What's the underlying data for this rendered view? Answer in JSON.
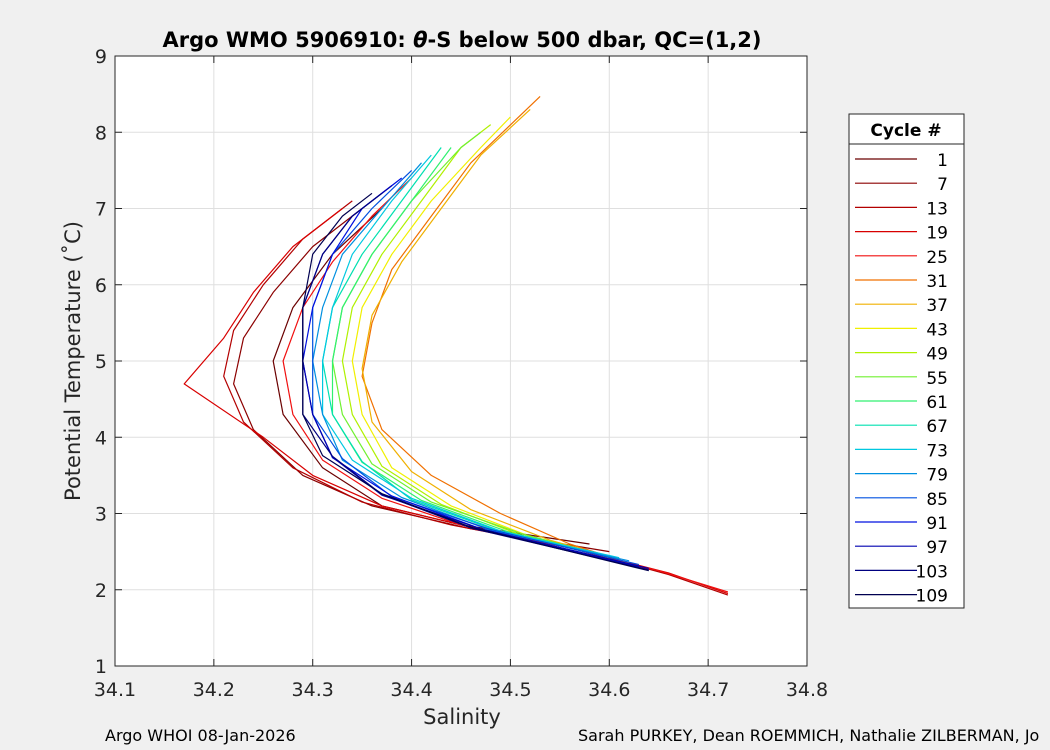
{
  "chart_data": {
    "type": "line",
    "title_prefix": "Argo WMO 5906910: ",
    "title_theta": "θ",
    "title_suffix": "-S below 500 dbar,  QC=(1,2)",
    "xlabel": "Salinity",
    "ylabel": "Potential Temperature (˚C)",
    "xlim": [
      34.1,
      34.8
    ],
    "ylim": [
      1,
      9
    ],
    "xticks": [
      "34.1",
      "34.2",
      "34.3",
      "34.4",
      "34.5",
      "34.6",
      "34.7",
      "34.8"
    ],
    "yticks": [
      "1",
      "2",
      "3",
      "4",
      "5",
      "6",
      "7",
      "8",
      "9"
    ],
    "grid": true,
    "legend": {
      "title": "Cycle #",
      "placement": "outside-right",
      "entries": [
        {
          "label": "1",
          "color": "#6b0000"
        },
        {
          "label": "7",
          "color": "#8c0000"
        },
        {
          "label": "13",
          "color": "#b30000"
        },
        {
          "label": "19",
          "color": "#d80000"
        },
        {
          "label": "25",
          "color": "#f01010"
        },
        {
          "label": "31",
          "color": "#f07000"
        },
        {
          "label": "37",
          "color": "#f0b000"
        },
        {
          "label": "43",
          "color": "#f0f000"
        },
        {
          "label": "49",
          "color": "#b0f000"
        },
        {
          "label": "55",
          "color": "#70f030"
        },
        {
          "label": "61",
          "color": "#30f070"
        },
        {
          "label": "67",
          "color": "#00e0b0"
        },
        {
          "label": "73",
          "color": "#00c8e0"
        },
        {
          "label": "79",
          "color": "#0090e0"
        },
        {
          "label": "85",
          "color": "#0050e0"
        },
        {
          "label": "91",
          "color": "#0010e0"
        },
        {
          "label": "97",
          "color": "#0000b0"
        },
        {
          "label": "103",
          "color": "#000080"
        },
        {
          "label": "109",
          "color": "#000050"
        }
      ]
    },
    "series": [
      {
        "name": "1",
        "color": "#6b0000",
        "points": [
          [
            34.58,
            2.6
          ],
          [
            34.45,
            2.85
          ],
          [
            34.37,
            3.1
          ],
          [
            34.31,
            3.6
          ],
          [
            34.27,
            4.3
          ],
          [
            34.26,
            5.0
          ],
          [
            34.28,
            5.7
          ],
          [
            34.32,
            6.4
          ],
          [
            34.37,
            7.0
          ]
        ]
      },
      {
        "name": "7",
        "color": "#8c0000",
        "points": [
          [
            34.6,
            2.5
          ],
          [
            34.46,
            2.8
          ],
          [
            34.36,
            3.1
          ],
          [
            34.29,
            3.5
          ],
          [
            34.24,
            4.1
          ],
          [
            34.22,
            4.7
          ],
          [
            34.23,
            5.3
          ],
          [
            34.26,
            5.9
          ],
          [
            34.3,
            6.5
          ],
          [
            34.35,
            7.0
          ]
        ]
      },
      {
        "name": "13",
        "color": "#b30000",
        "points": [
          [
            34.72,
            1.93
          ],
          [
            34.66,
            2.2
          ],
          [
            34.56,
            2.55
          ],
          [
            34.44,
            2.85
          ],
          [
            34.35,
            3.15
          ],
          [
            34.28,
            3.6
          ],
          [
            34.23,
            4.2
          ],
          [
            34.21,
            4.8
          ],
          [
            34.22,
            5.4
          ],
          [
            34.25,
            6.0
          ],
          [
            34.29,
            6.6
          ],
          [
            34.34,
            7.1
          ]
        ]
      },
      {
        "name": "19",
        "color": "#d80000",
        "points": [
          [
            34.72,
            1.95
          ],
          [
            34.66,
            2.22
          ],
          [
            34.57,
            2.52
          ],
          [
            34.46,
            2.82
          ],
          [
            34.37,
            3.1
          ],
          [
            34.3,
            3.5
          ],
          [
            34.25,
            4.0
          ],
          [
            34.17,
            4.7
          ],
          [
            34.21,
            5.3
          ],
          [
            34.24,
            5.9
          ],
          [
            34.28,
            6.5
          ],
          [
            34.33,
            7.0
          ]
        ]
      },
      {
        "name": "25",
        "color": "#f01010",
        "points": [
          [
            34.72,
            1.97
          ],
          [
            34.65,
            2.25
          ],
          [
            34.55,
            2.55
          ],
          [
            34.45,
            2.85
          ],
          [
            34.37,
            3.2
          ],
          [
            34.31,
            3.7
          ],
          [
            34.28,
            4.3
          ],
          [
            34.27,
            5.0
          ],
          [
            34.29,
            5.7
          ],
          [
            34.32,
            6.3
          ],
          [
            34.36,
            6.9
          ],
          [
            34.4,
            7.4
          ]
        ]
      },
      {
        "name": "31",
        "color": "#f07000",
        "points": [
          [
            34.62,
            2.35
          ],
          [
            34.56,
            2.6
          ],
          [
            34.49,
            3.0
          ],
          [
            34.42,
            3.5
          ],
          [
            34.37,
            4.1
          ],
          [
            34.35,
            4.8
          ],
          [
            34.36,
            5.5
          ],
          [
            34.38,
            6.2
          ],
          [
            34.42,
            6.9
          ],
          [
            34.46,
            7.6
          ],
          [
            34.53,
            8.47
          ]
        ]
      },
      {
        "name": "37",
        "color": "#f0b000",
        "points": [
          [
            34.61,
            2.4
          ],
          [
            34.54,
            2.65
          ],
          [
            34.46,
            3.05
          ],
          [
            34.4,
            3.55
          ],
          [
            34.36,
            4.2
          ],
          [
            34.35,
            4.9
          ],
          [
            34.36,
            5.6
          ],
          [
            34.39,
            6.3
          ],
          [
            34.43,
            7.0
          ],
          [
            34.47,
            7.7
          ],
          [
            34.52,
            8.3
          ]
        ]
      },
      {
        "name": "43",
        "color": "#f0f000",
        "points": [
          [
            34.6,
            2.42
          ],
          [
            34.52,
            2.7
          ],
          [
            34.44,
            3.1
          ],
          [
            34.38,
            3.6
          ],
          [
            34.35,
            4.3
          ],
          [
            34.34,
            5.0
          ],
          [
            34.35,
            5.7
          ],
          [
            34.38,
            6.4
          ],
          [
            34.42,
            7.1
          ],
          [
            34.47,
            7.8
          ],
          [
            34.5,
            8.2
          ]
        ]
      },
      {
        "name": "49",
        "color": "#b0f000",
        "points": [
          [
            34.6,
            2.42
          ],
          [
            34.51,
            2.72
          ],
          [
            34.43,
            3.12
          ],
          [
            34.37,
            3.62
          ],
          [
            34.34,
            4.3
          ],
          [
            34.33,
            5.0
          ],
          [
            34.34,
            5.7
          ],
          [
            34.37,
            6.4
          ],
          [
            34.41,
            7.1
          ],
          [
            34.45,
            7.8
          ],
          [
            34.48,
            8.1
          ]
        ]
      },
      {
        "name": "55",
        "color": "#70f030",
        "points": [
          [
            34.6,
            2.43
          ],
          [
            34.51,
            2.74
          ],
          [
            34.42,
            3.15
          ],
          [
            34.36,
            3.65
          ],
          [
            34.33,
            4.3
          ],
          [
            34.32,
            5.0
          ],
          [
            34.33,
            5.7
          ],
          [
            34.36,
            6.4
          ],
          [
            34.4,
            7.1
          ],
          [
            34.45,
            7.8
          ],
          [
            34.47,
            8.0
          ]
        ]
      },
      {
        "name": "61",
        "color": "#30f070",
        "points": [
          [
            34.6,
            2.44
          ],
          [
            34.5,
            2.75
          ],
          [
            34.41,
            3.17
          ],
          [
            34.35,
            3.67
          ],
          [
            34.32,
            4.3
          ],
          [
            34.32,
            5.0
          ],
          [
            34.33,
            5.7
          ],
          [
            34.36,
            6.4
          ],
          [
            34.4,
            7.1
          ],
          [
            34.44,
            7.8
          ]
        ]
      },
      {
        "name": "67",
        "color": "#00e0b0",
        "points": [
          [
            34.6,
            2.44
          ],
          [
            34.49,
            2.76
          ],
          [
            34.4,
            3.18
          ],
          [
            34.35,
            3.68
          ],
          [
            34.32,
            4.3
          ],
          [
            34.31,
            5.0
          ],
          [
            34.32,
            5.7
          ],
          [
            34.35,
            6.4
          ],
          [
            34.39,
            7.1
          ],
          [
            34.43,
            7.8
          ]
        ]
      },
      {
        "name": "73",
        "color": "#00c8e0",
        "points": [
          [
            34.61,
            2.42
          ],
          [
            34.49,
            2.77
          ],
          [
            34.4,
            3.2
          ],
          [
            34.34,
            3.7
          ],
          [
            34.31,
            4.3
          ],
          [
            34.31,
            5.0
          ],
          [
            34.32,
            5.7
          ],
          [
            34.34,
            6.4
          ],
          [
            34.38,
            7.1
          ],
          [
            34.42,
            7.7
          ]
        ]
      },
      {
        "name": "79",
        "color": "#0090e0",
        "points": [
          [
            34.62,
            2.38
          ],
          [
            34.48,
            2.78
          ],
          [
            34.39,
            3.21
          ],
          [
            34.33,
            3.7
          ],
          [
            34.31,
            4.3
          ],
          [
            34.3,
            5.0
          ],
          [
            34.31,
            5.7
          ],
          [
            34.33,
            6.4
          ],
          [
            34.37,
            7.0
          ],
          [
            34.41,
            7.6
          ]
        ]
      },
      {
        "name": "85",
        "color": "#0050e0",
        "points": [
          [
            34.63,
            2.33
          ],
          [
            34.48,
            2.79
          ],
          [
            34.38,
            3.22
          ],
          [
            34.33,
            3.72
          ],
          [
            34.3,
            4.3
          ],
          [
            34.3,
            5.0
          ],
          [
            34.3,
            5.7
          ],
          [
            34.32,
            6.4
          ],
          [
            34.36,
            7.0
          ],
          [
            34.4,
            7.5
          ]
        ]
      },
      {
        "name": "91",
        "color": "#0010e0",
        "points": [
          [
            34.63,
            2.3
          ],
          [
            34.47,
            2.8
          ],
          [
            34.38,
            3.23
          ],
          [
            34.32,
            3.73
          ],
          [
            34.3,
            4.3
          ],
          [
            34.29,
            5.0
          ],
          [
            34.3,
            5.7
          ],
          [
            34.32,
            6.4
          ],
          [
            34.35,
            7.0
          ],
          [
            34.39,
            7.4
          ]
        ]
      },
      {
        "name": "97",
        "color": "#0000b0",
        "points": [
          [
            34.64,
            2.28
          ],
          [
            34.47,
            2.8
          ],
          [
            34.37,
            3.24
          ],
          [
            34.32,
            3.74
          ],
          [
            34.3,
            4.3
          ],
          [
            34.29,
            5.0
          ],
          [
            34.29,
            5.7
          ],
          [
            34.31,
            6.4
          ],
          [
            34.34,
            6.9
          ],
          [
            34.38,
            7.3
          ]
        ]
      },
      {
        "name": "103",
        "color": "#000080",
        "points": [
          [
            34.64,
            2.26
          ],
          [
            34.46,
            2.81
          ],
          [
            34.37,
            3.25
          ],
          [
            34.32,
            3.75
          ],
          [
            34.29,
            4.3
          ],
          [
            34.29,
            5.0
          ],
          [
            34.29,
            5.7
          ],
          [
            34.31,
            6.4
          ],
          [
            34.34,
            6.9
          ],
          [
            34.37,
            7.2
          ]
        ]
      },
      {
        "name": "109",
        "color": "#000050",
        "points": [
          [
            34.64,
            2.25
          ],
          [
            34.46,
            2.82
          ],
          [
            34.37,
            3.26
          ],
          [
            34.31,
            3.76
          ],
          [
            34.29,
            4.3
          ],
          [
            34.29,
            5.0
          ],
          [
            34.29,
            5.7
          ],
          [
            34.3,
            6.4
          ],
          [
            34.33,
            6.9
          ],
          [
            34.36,
            7.2
          ]
        ]
      }
    ]
  },
  "footer": {
    "left": "Argo WHOI 08-Jan-2026",
    "right": "Sarah PURKEY, Dean ROEMMICH, Nathalie ZILBERMAN, Jo"
  }
}
